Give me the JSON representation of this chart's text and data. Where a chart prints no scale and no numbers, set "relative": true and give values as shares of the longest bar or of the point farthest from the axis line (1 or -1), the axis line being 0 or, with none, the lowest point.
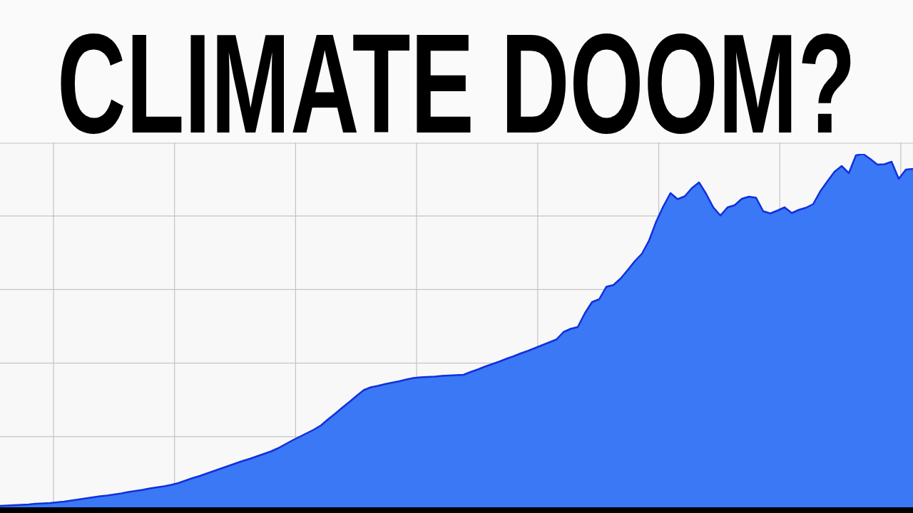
{
  "chart_data": {
    "type": "area",
    "title": "CLIMATE DOOM?",
    "categories": [
      null,
      null,
      null,
      null,
      null,
      null,
      null,
      null,
      null,
      null,
      null,
      null,
      null,
      null,
      null,
      null,
      null,
      null,
      null,
      null,
      null,
      null,
      null,
      null,
      null,
      null,
      null,
      null,
      null,
      null,
      null,
      null,
      null,
      null,
      null,
      null,
      null,
      null,
      null,
      null,
      null,
      null,
      null,
      null,
      null,
      null,
      null,
      null,
      null,
      null,
      null,
      null,
      null,
      null,
      null,
      null,
      null,
      null,
      null,
      null,
      null,
      null,
      null,
      null,
      null,
      null,
      null,
      null,
      null,
      null,
      null,
      null,
      null,
      null,
      null,
      null,
      null,
      null,
      null,
      null,
      null,
      null,
      null,
      null,
      null,
      null,
      null,
      null,
      null,
      null,
      null,
      null,
      null,
      null,
      null,
      null,
      null,
      null,
      null,
      null,
      null,
      null,
      null,
      null,
      null,
      null,
      null,
      null,
      null,
      null,
      null,
      null,
      null,
      null,
      null,
      null,
      null,
      null,
      null,
      null,
      null,
      null,
      null,
      null,
      null,
      null,
      null,
      null,
      null
    ],
    "values": [
      0.012,
      0.013,
      0.014,
      0.015,
      0.016,
      0.018,
      0.019,
      0.02,
      0.022,
      0.024,
      0.027,
      0.03,
      0.033,
      0.036,
      0.039,
      0.041,
      0.044,
      0.047,
      0.051,
      0.054,
      0.057,
      0.061,
      0.064,
      0.067,
      0.071,
      0.076,
      0.083,
      0.09,
      0.096,
      0.103,
      0.11,
      0.117,
      0.124,
      0.131,
      0.138,
      0.144,
      0.151,
      0.158,
      0.165,
      0.174,
      0.185,
      0.196,
      0.206,
      0.216,
      0.226,
      0.238,
      0.255,
      0.271,
      0.288,
      0.304,
      0.321,
      0.337,
      0.345,
      0.349,
      0.354,
      0.358,
      0.362,
      0.367,
      0.371,
      0.373,
      0.374,
      0.375,
      0.377,
      0.378,
      0.379,
      0.38,
      0.388,
      0.395,
      0.403,
      0.41,
      0.417,
      0.425,
      0.432,
      0.44,
      0.447,
      0.455,
      0.463,
      0.471,
      0.479,
      0.5,
      0.509,
      0.514,
      0.553,
      0.584,
      0.592,
      0.627,
      0.632,
      0.65,
      0.674,
      0.699,
      0.72,
      0.757,
      0.81,
      0.853,
      0.89,
      0.873,
      0.881,
      0.904,
      0.92,
      0.888,
      0.85,
      0.827,
      0.85,
      0.856,
      0.874,
      0.88,
      0.877,
      0.839,
      0.833,
      0.841,
      0.85,
      0.834,
      0.843,
      0.849,
      0.859,
      0.895,
      0.923,
      0.95,
      0.966,
      0.946,
      0.996,
      1,
      0.986,
      0.97,
      0.971,
      0.978,
      0.93,
      0.956,
      0.958
    ],
    "color": "#3a78f5",
    "relative": true,
    "grid": true
  }
}
